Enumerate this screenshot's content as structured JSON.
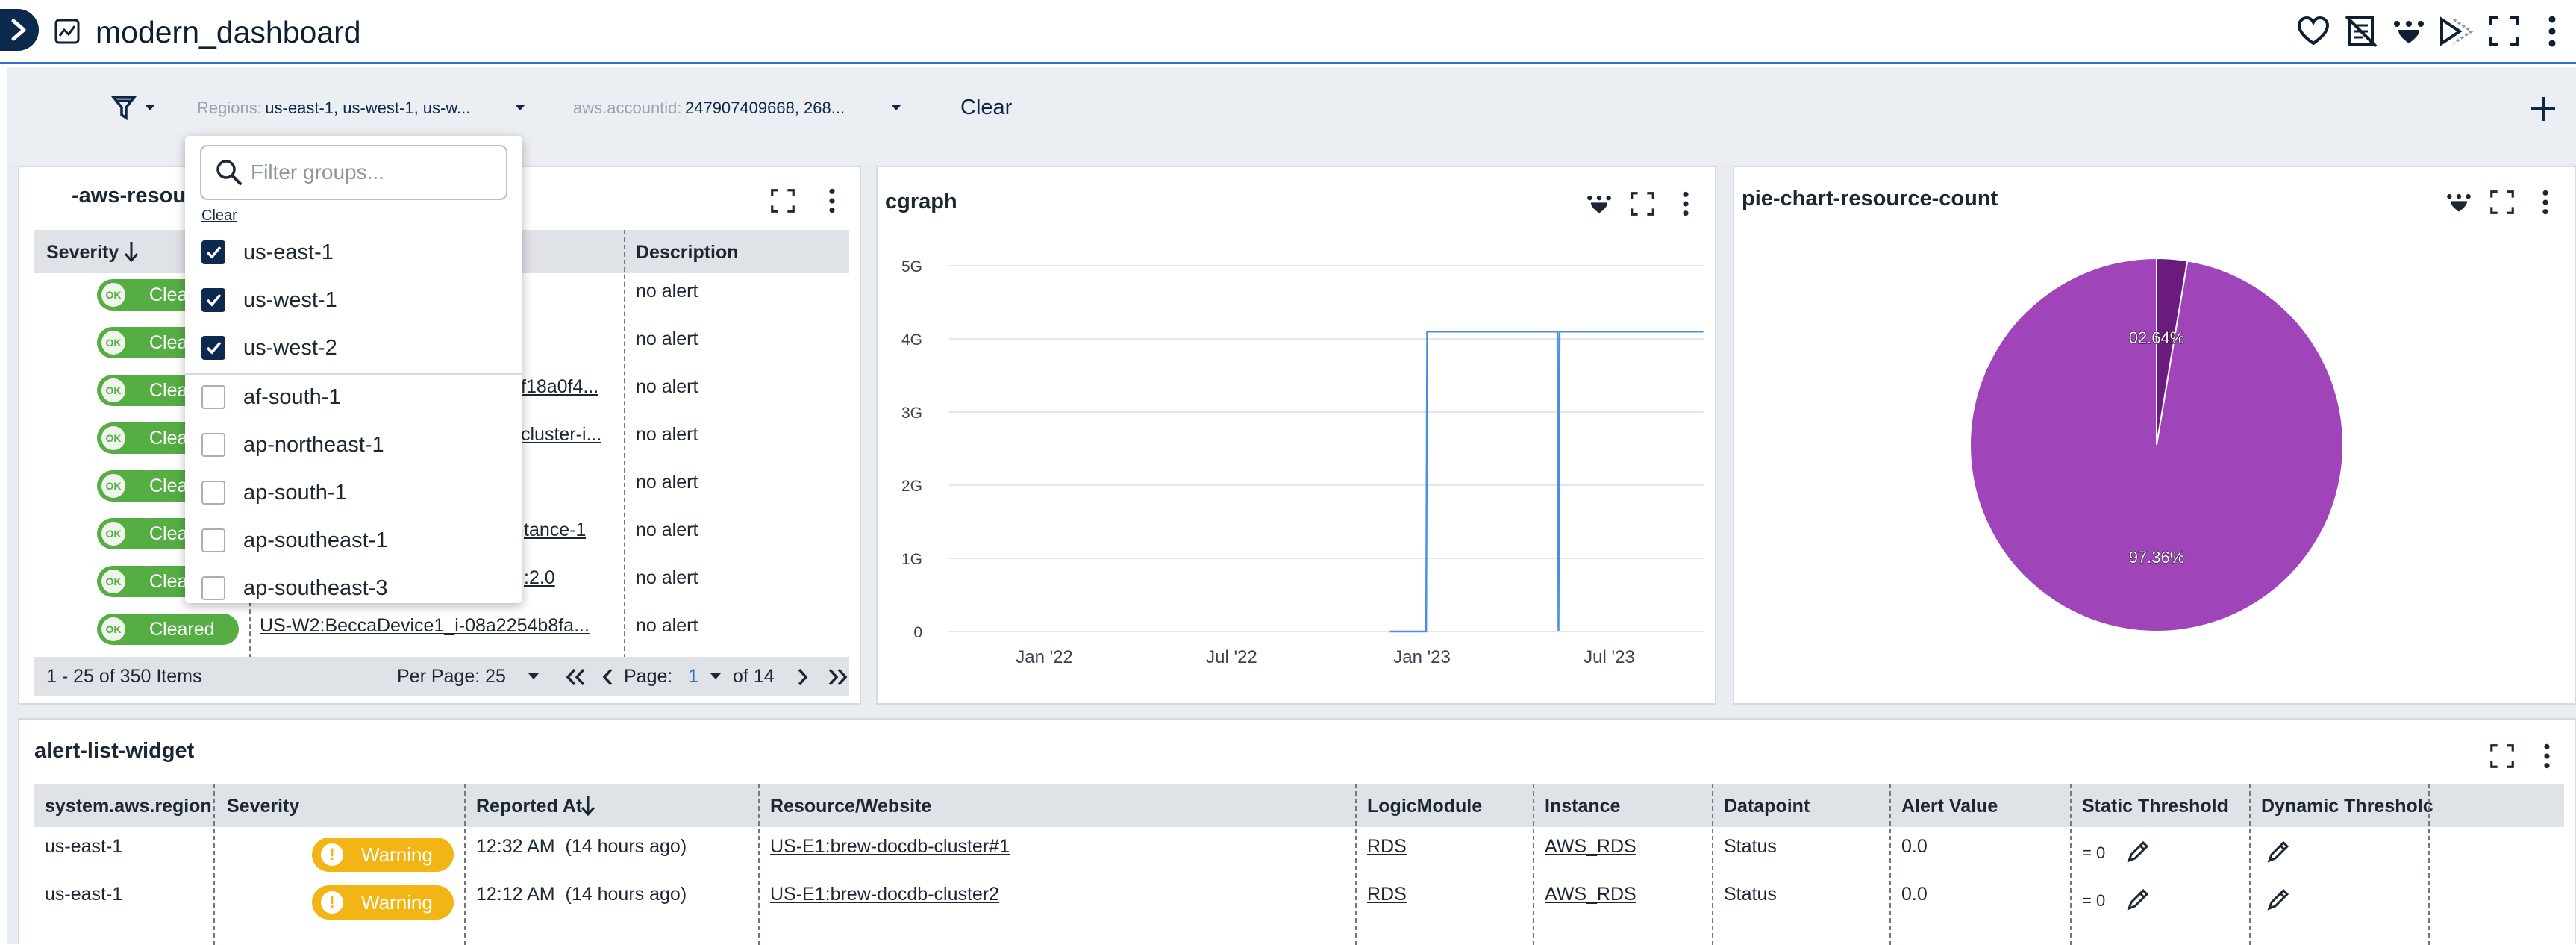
{
  "app": {
    "title": "modern_dashboard"
  },
  "filters": {
    "regions_label": "Regions:",
    "regions_value": "us-east-1, us-west-1, us-w...",
    "account_label": "aws.accountid:",
    "account_value": "247907409668, 268...",
    "clear_label": "Clear"
  },
  "dropdown": {
    "search_placeholder": "Filter groups...",
    "clear_label": "Clear",
    "items": [
      {
        "label": "us-east-1",
        "checked": true
      },
      {
        "label": "us-west-1",
        "checked": true
      },
      {
        "label": "us-west-2",
        "checked": true
      },
      {
        "label": "af-south-1",
        "checked": false
      },
      {
        "label": "ap-northeast-1",
        "checked": false
      },
      {
        "label": "ap-south-1",
        "checked": false
      },
      {
        "label": "ap-southeast-1",
        "checked": false
      },
      {
        "label": "ap-southeast-3",
        "checked": false
      }
    ]
  },
  "resource_widget": {
    "title": "-aws-resour",
    "col_severity": "Severity",
    "col_description": "Description",
    "rows": [
      {
        "status": "Cleared",
        "resource": "",
        "description": "no alert"
      },
      {
        "status": "Cleared",
        "resource": "",
        "description": "no alert"
      },
      {
        "status": "Cleared",
        "resource": "f18a0f4...",
        "description": "no alert"
      },
      {
        "status": "Cleared",
        "resource": "cluster-i...",
        "description": "no alert"
      },
      {
        "status": "Cleared",
        "resource": "",
        "description": "no alert"
      },
      {
        "status": "Cleared",
        "resource": "tance-1",
        "description": "no alert"
      },
      {
        "status": "Cleared",
        "resource": ":2.0",
        "description": "no alert"
      },
      {
        "status": "Cleared",
        "resource": "US-W2:BeccaDevice1_i-08a2254b8fa...",
        "description": "no alert"
      }
    ],
    "ok_badge": "OK",
    "footer": {
      "items": "1 - 25 of 350 Items",
      "per_page": "Per Page: 25",
      "page_label": "Page:",
      "page_value": "1",
      "of_pages": "of 14"
    }
  },
  "cgraph": {
    "title": "cgraph"
  },
  "pie_widget": {
    "title": "pie-chart-resource-count"
  },
  "chart_data": [
    {
      "type": "line",
      "title": "cgraph",
      "x_ticks": [
        "Jan '22",
        "Jul '22",
        "Jan '23",
        "Jul '23"
      ],
      "y_ticks": [
        "0",
        "1G",
        "2G",
        "3G",
        "4G",
        "5G"
      ],
      "ylim": [
        0,
        5
      ],
      "y_unit": "G",
      "grid": true,
      "series": [
        {
          "color": "#4a8fe6",
          "points": [
            {
              "x": "2022-12-01",
              "y": 0
            },
            {
              "x": "2023-01-05",
              "y": 0
            },
            {
              "x": "2023-01-06",
              "y": 4.1
            },
            {
              "x": "2023-05-12",
              "y": 4.1
            },
            {
              "x": "2023-05-13",
              "y": 0
            },
            {
              "x": "2023-05-14",
              "y": 4.1
            },
            {
              "x": "2023-09-30",
              "y": 4.1
            }
          ]
        }
      ]
    },
    {
      "type": "pie",
      "title": "pie-chart-resource-count",
      "values": [
        97.36,
        2.64
      ],
      "labels": [
        "97.36%",
        "02.64%"
      ],
      "colors": [
        "#9f45b9",
        "#6b1a7e"
      ]
    }
  ],
  "alert_list": {
    "title": "alert-list-widget",
    "columns": [
      "system.aws.region",
      "Severity",
      "Reported At",
      "Resource/Website",
      "LogicModule",
      "Instance",
      "Datapoint",
      "Alert Value",
      "Static Threshold",
      "Dynamic Thresholc"
    ],
    "rows": [
      {
        "region": "us-east-1",
        "severity": "Warning",
        "reported_time": "12:32 AM",
        "reported_ago": "(14 hours ago)",
        "resource": "US-E1:brew-docdb-cluster#1",
        "logic_module": "RDS",
        "instance": "AWS_RDS",
        "datapoint": "Status",
        "alert_value": "0.0",
        "static_threshold": "= 0"
      },
      {
        "region": "us-east-1",
        "severity": "Warning",
        "reported_time": "12:12 AM",
        "reported_ago": "(14 hours ago)",
        "resource": "US-E1:brew-docdb-cluster2",
        "logic_module": "RDS",
        "instance": "AWS_RDS",
        "datapoint": "Status",
        "alert_value": "0.0",
        "static_threshold": "= 0"
      }
    ]
  },
  "colors": {
    "accent": "#2f6dd6",
    "nav": "#0b2a4e",
    "cleared": "#56ad43",
    "warning": "#f2b515",
    "pie_major": "#9f45b9",
    "pie_minor": "#6b1a7e",
    "line": "#4a8fe6"
  }
}
